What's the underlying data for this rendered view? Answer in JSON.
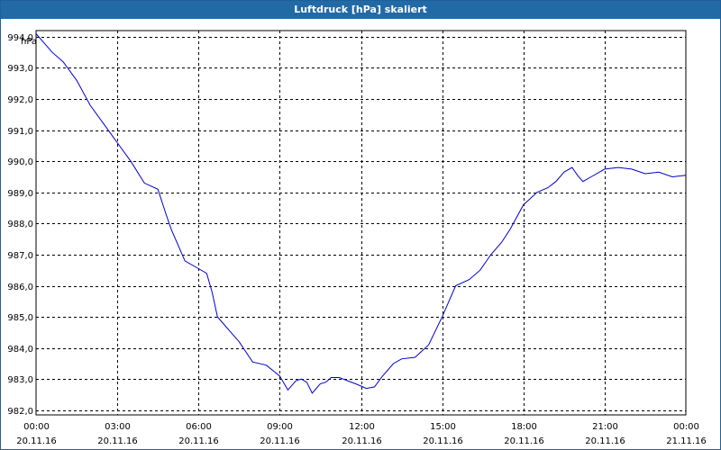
{
  "window": {
    "title": "Luftdruck [hPa] skaliert"
  },
  "colors": {
    "line": "#0000cc",
    "titlebar": "#226aa6",
    "grid": "#000000"
  },
  "chart_data": {
    "type": "line",
    "title": "Luftdruck [hPa] skaliert",
    "ylabel": "hPa",
    "xlabel": "",
    "grid": true,
    "ylim": [
      981.85,
      994.2
    ],
    "xlim": [
      0,
      24
    ],
    "y_ticks": [
      982,
      983,
      984,
      985,
      986,
      987,
      988,
      989,
      990,
      991,
      992,
      993,
      994
    ],
    "y_tick_labels": [
      "982,0",
      "983,0",
      "984,0",
      "985,0",
      "986,0",
      "987,0",
      "988,0",
      "989,0",
      "990,0",
      "991,0",
      "992,0",
      "993,0",
      "994,0"
    ],
    "x_ticks": [
      0,
      3,
      6,
      9,
      12,
      15,
      18,
      21,
      24
    ],
    "x_tick_labels": [
      {
        "time": "00:00",
        "date": "20.11.16"
      },
      {
        "time": "03:00",
        "date": "20.11.16"
      },
      {
        "time": "06:00",
        "date": "20.11.16"
      },
      {
        "time": "09:00",
        "date": "20.11.16"
      },
      {
        "time": "12:00",
        "date": "20.11.16"
      },
      {
        "time": "15:00",
        "date": "20.11.16"
      },
      {
        "time": "18:00",
        "date": "20.11.16"
      },
      {
        "time": "21:00",
        "date": "20.11.16"
      },
      {
        "time": "00:00",
        "date": "21.11.16"
      }
    ],
    "series": [
      {
        "name": "Luftdruck",
        "x": [
          0,
          0.3,
          0.6,
          1.0,
          1.5,
          2.0,
          2.5,
          3.0,
          3.5,
          4.0,
          4.5,
          4.8,
          5.0,
          5.5,
          6.0,
          6.3,
          6.5,
          6.7,
          7.0,
          7.5,
          8.0,
          8.5,
          9.0,
          9.3,
          9.6,
          9.8,
          10.0,
          10.2,
          10.5,
          10.7,
          10.9,
          11.2,
          11.5,
          11.8,
          12.2,
          12.5,
          12.8,
          13.2,
          13.5,
          14.0,
          14.5,
          15.0,
          15.5,
          16.0,
          16.4,
          16.8,
          17.2,
          17.5,
          18.0,
          18.5,
          18.9,
          19.2,
          19.5,
          19.8,
          20.0,
          20.2,
          20.5,
          21.0,
          21.5,
          22.0,
          22.5,
          23.0,
          23.5,
          24.0
        ],
        "values": [
          994.1,
          993.8,
          993.5,
          993.2,
          992.6,
          991.8,
          991.2,
          990.6,
          990.0,
          989.3,
          989.1,
          988.3,
          987.8,
          986.8,
          986.55,
          986.4,
          985.8,
          985.0,
          984.7,
          984.2,
          983.55,
          983.45,
          983.1,
          982.65,
          982.95,
          983.0,
          982.9,
          982.55,
          982.85,
          982.9,
          983.05,
          983.05,
          982.95,
          982.85,
          982.7,
          982.75,
          983.1,
          983.5,
          983.65,
          983.7,
          984.1,
          985.0,
          986.0,
          986.2,
          986.5,
          987.0,
          987.4,
          987.8,
          988.6,
          989.0,
          989.15,
          989.35,
          989.65,
          989.8,
          989.55,
          989.35,
          989.5,
          989.75,
          989.8,
          989.75,
          989.6,
          989.65,
          989.5,
          989.55
        ]
      }
    ]
  }
}
